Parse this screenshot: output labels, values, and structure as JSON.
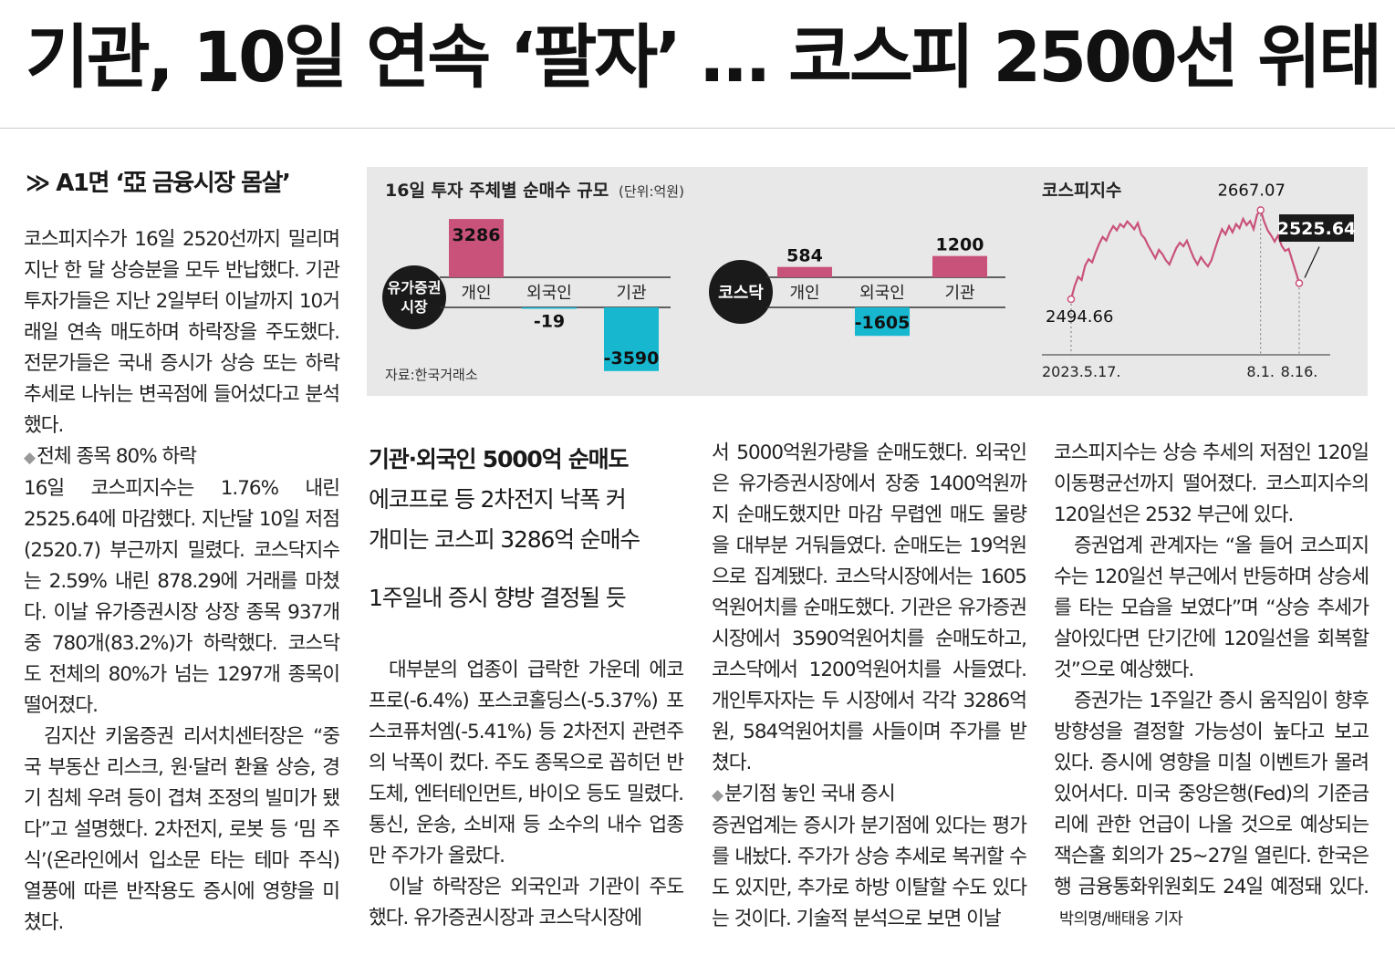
{
  "headline": "기관, 10일 연속 ‘팔자’ … 코스피 2500선 위태",
  "reference": "≫ A1면 ‘亞 금융시장 몸살’",
  "column1": {
    "p1": "코스피지수가 16일 2520선까지 밀리며 지난 한 달 상승분을 모두 반납했다. 기관투자가들은 지난 2일부터 이날까지 10거래일 연속 매도하며 하락장을 주도했다. 전문가들은 국내 증시가 상승 또는 하락 추세로 나뉘는 변곡점에 들어섰다고 분석했다.",
    "sub1": "전체 종목 80% 하락",
    "p2": "16일 코스피지수는 1.76% 내린 2525.64에 마감했다. 지난달 10일 저점(2520.7) 부근까지 밀렸다. 코스닥지수는 2.59% 내린 878.29에 거래를 마쳤다. 이날 유가증권시장 상장 종목 937개 중 780개(83.2%)가 하락했다. 코스닥도 전체의 80%가 넘는 1297개 종목이 떨어졌다.",
    "p3": "김지산 키움증권 리서치센터장은 “중국 부동산 리스크, 원·달러 환율 상승, 경기 침체 우려 등이 겹쳐 조정의 빌미가 됐다”고 설명했다. 2차전지, 로봇 등 ‘밈 주식’(온라인에서 입소문 타는 테마 주식) 열풍에 따른 반작용도 증시에 영향을 미쳤다."
  },
  "deck": {
    "d0": "기관·외국인 5000억 순매도",
    "d1": "에코프로 등 2차전지 낙폭 커",
    "d2": "개미는 코스피 3286억 순매수",
    "d3": "1주일내 증시 향방 결정될 듯"
  },
  "column2": {
    "p1": "대부분의 업종이 급락한 가운데 에코프로(-6.4%) 포스코홀딩스(-5.37%) 포스코퓨처엠(-5.41%) 등 2차전지 관련주의 낙폭이 컸다. 주도 종목으로 꼽히던 반도체, 엔터테인먼트, 바이오 등도 밀렸다. 통신, 운송, 소비재 등 소수의 내수 업종만 주가가 올랐다.",
    "p2": "이날 하락장은 외국인과 기관이 주도했다. 유가증권시장과 코스닥시장에"
  },
  "column3": {
    "p1": "서 5000억원가량을 순매도했다. 외국인은 유가증권시장에서 장중 1400억원까지 순매도했지만 마감 무렵엔 매도 물량을 대부분 거둬들였다. 순매도는 19억원으로 집계됐다. 코스닥시장에서는 1605억원어치를 순매도했다. 기관은 유가증권시장에서 3590억원어치를 순매도하고, 코스닥에서 1200억원어치를 사들였다. 개인투자자는 두 시장에서 각각 3286억원, 584억원어치를 사들이며 주가를 받쳤다.",
    "sub1": "분기점 놓인 국내 증시",
    "p2": "증권업계는 증시가 분기점에 있다는 평가를 내놨다. 주가가 상승 추세로 복귀할 수도 있지만, 추가로 하방 이탈할 수도 있다는 것이다. 기술적 분석으로 보면 이날"
  },
  "column4": {
    "p1": "코스피지수는 상승 추세의 저점인 120일 이동평균선까지 떨어졌다. 코스피지수의 120일선은 2532 부근에 있다.",
    "p2": "증권업계 관계자는 “올 들어 코스피지수는 120일선 부근에서 반등하며 상승세를 타는 모습을 보였다”며 “상승 추세가 살아있다면 단기간에 120일선을 회복할 것”으로 예상했다.",
    "p3": "증권가는 1주일간 증시 움직임이 향후 방향성을 결정할 가능성이 높다고 보고 있다. 증시에 영향을 미칠 이벤트가 몰려 있어서다. 미국 중앙은행(Fed)의 기준금리에 관한 언급이 나올 것으로 예상되는 잭슨홀 회의가 25~27일 열린다. 한국은행 금융통화위원회도 24일 예정돼 있다.",
    "byline": "박의명/배태웅 기자"
  },
  "graphic": {
    "title": "16일 투자 주체별 순매수 규모",
    "unit": "(단위:억원)",
    "source": "자료:한국거래소",
    "colors": {
      "buy": "#c9527a",
      "sell": "#17b7d0",
      "badge": "#1a1a1a",
      "line": "#c9527a"
    }
  },
  "chart_data": [
    {
      "type": "bar",
      "market": "유가증권시장",
      "categories": [
        "개인",
        "외국인",
        "기관"
      ],
      "values": [
        3286,
        -19,
        -3590
      ],
      "value_labels": [
        "3286",
        "-19",
        "-3590"
      ]
    },
    {
      "type": "bar",
      "market": "코스닥",
      "categories": [
        "개인",
        "외국인",
        "기관"
      ],
      "values": [
        584,
        -1605,
        1200
      ],
      "value_labels": [
        "584",
        "-1605",
        "1200"
      ]
    },
    {
      "type": "line",
      "title": "코스피지수",
      "x_ticks": [
        "2023.5.17.",
        "8.1.",
        "8.16."
      ],
      "annotations": [
        {
          "x": "2023.5.17.",
          "label": "2494.66",
          "value": 2494.66
        },
        {
          "x": "8.1.",
          "label": "2667.07",
          "value": 2667.07
        },
        {
          "x": "8.16.",
          "label": "2525.64",
          "value": 2525.64
        }
      ],
      "ylim": [
        2440,
        2680
      ],
      "values": [
        2494.66,
        2520,
        2538,
        2532,
        2560,
        2572,
        2566,
        2585,
        2602,
        2615,
        2608,
        2624,
        2636,
        2628,
        2640,
        2634,
        2645,
        2638,
        2630,
        2642,
        2620,
        2612,
        2598,
        2586,
        2574,
        2590,
        2582,
        2570,
        2562,
        2578,
        2594,
        2604,
        2597,
        2608,
        2590,
        2574,
        2562,
        2576,
        2566,
        2558,
        2570,
        2592,
        2612,
        2630,
        2620,
        2636,
        2624,
        2640,
        2632,
        2650,
        2638,
        2646,
        2630,
        2658,
        2667.07,
        2645,
        2628,
        2618,
        2606,
        2618,
        2598,
        2588,
        2592,
        2570,
        2548,
        2525.64
      ]
    }
  ]
}
